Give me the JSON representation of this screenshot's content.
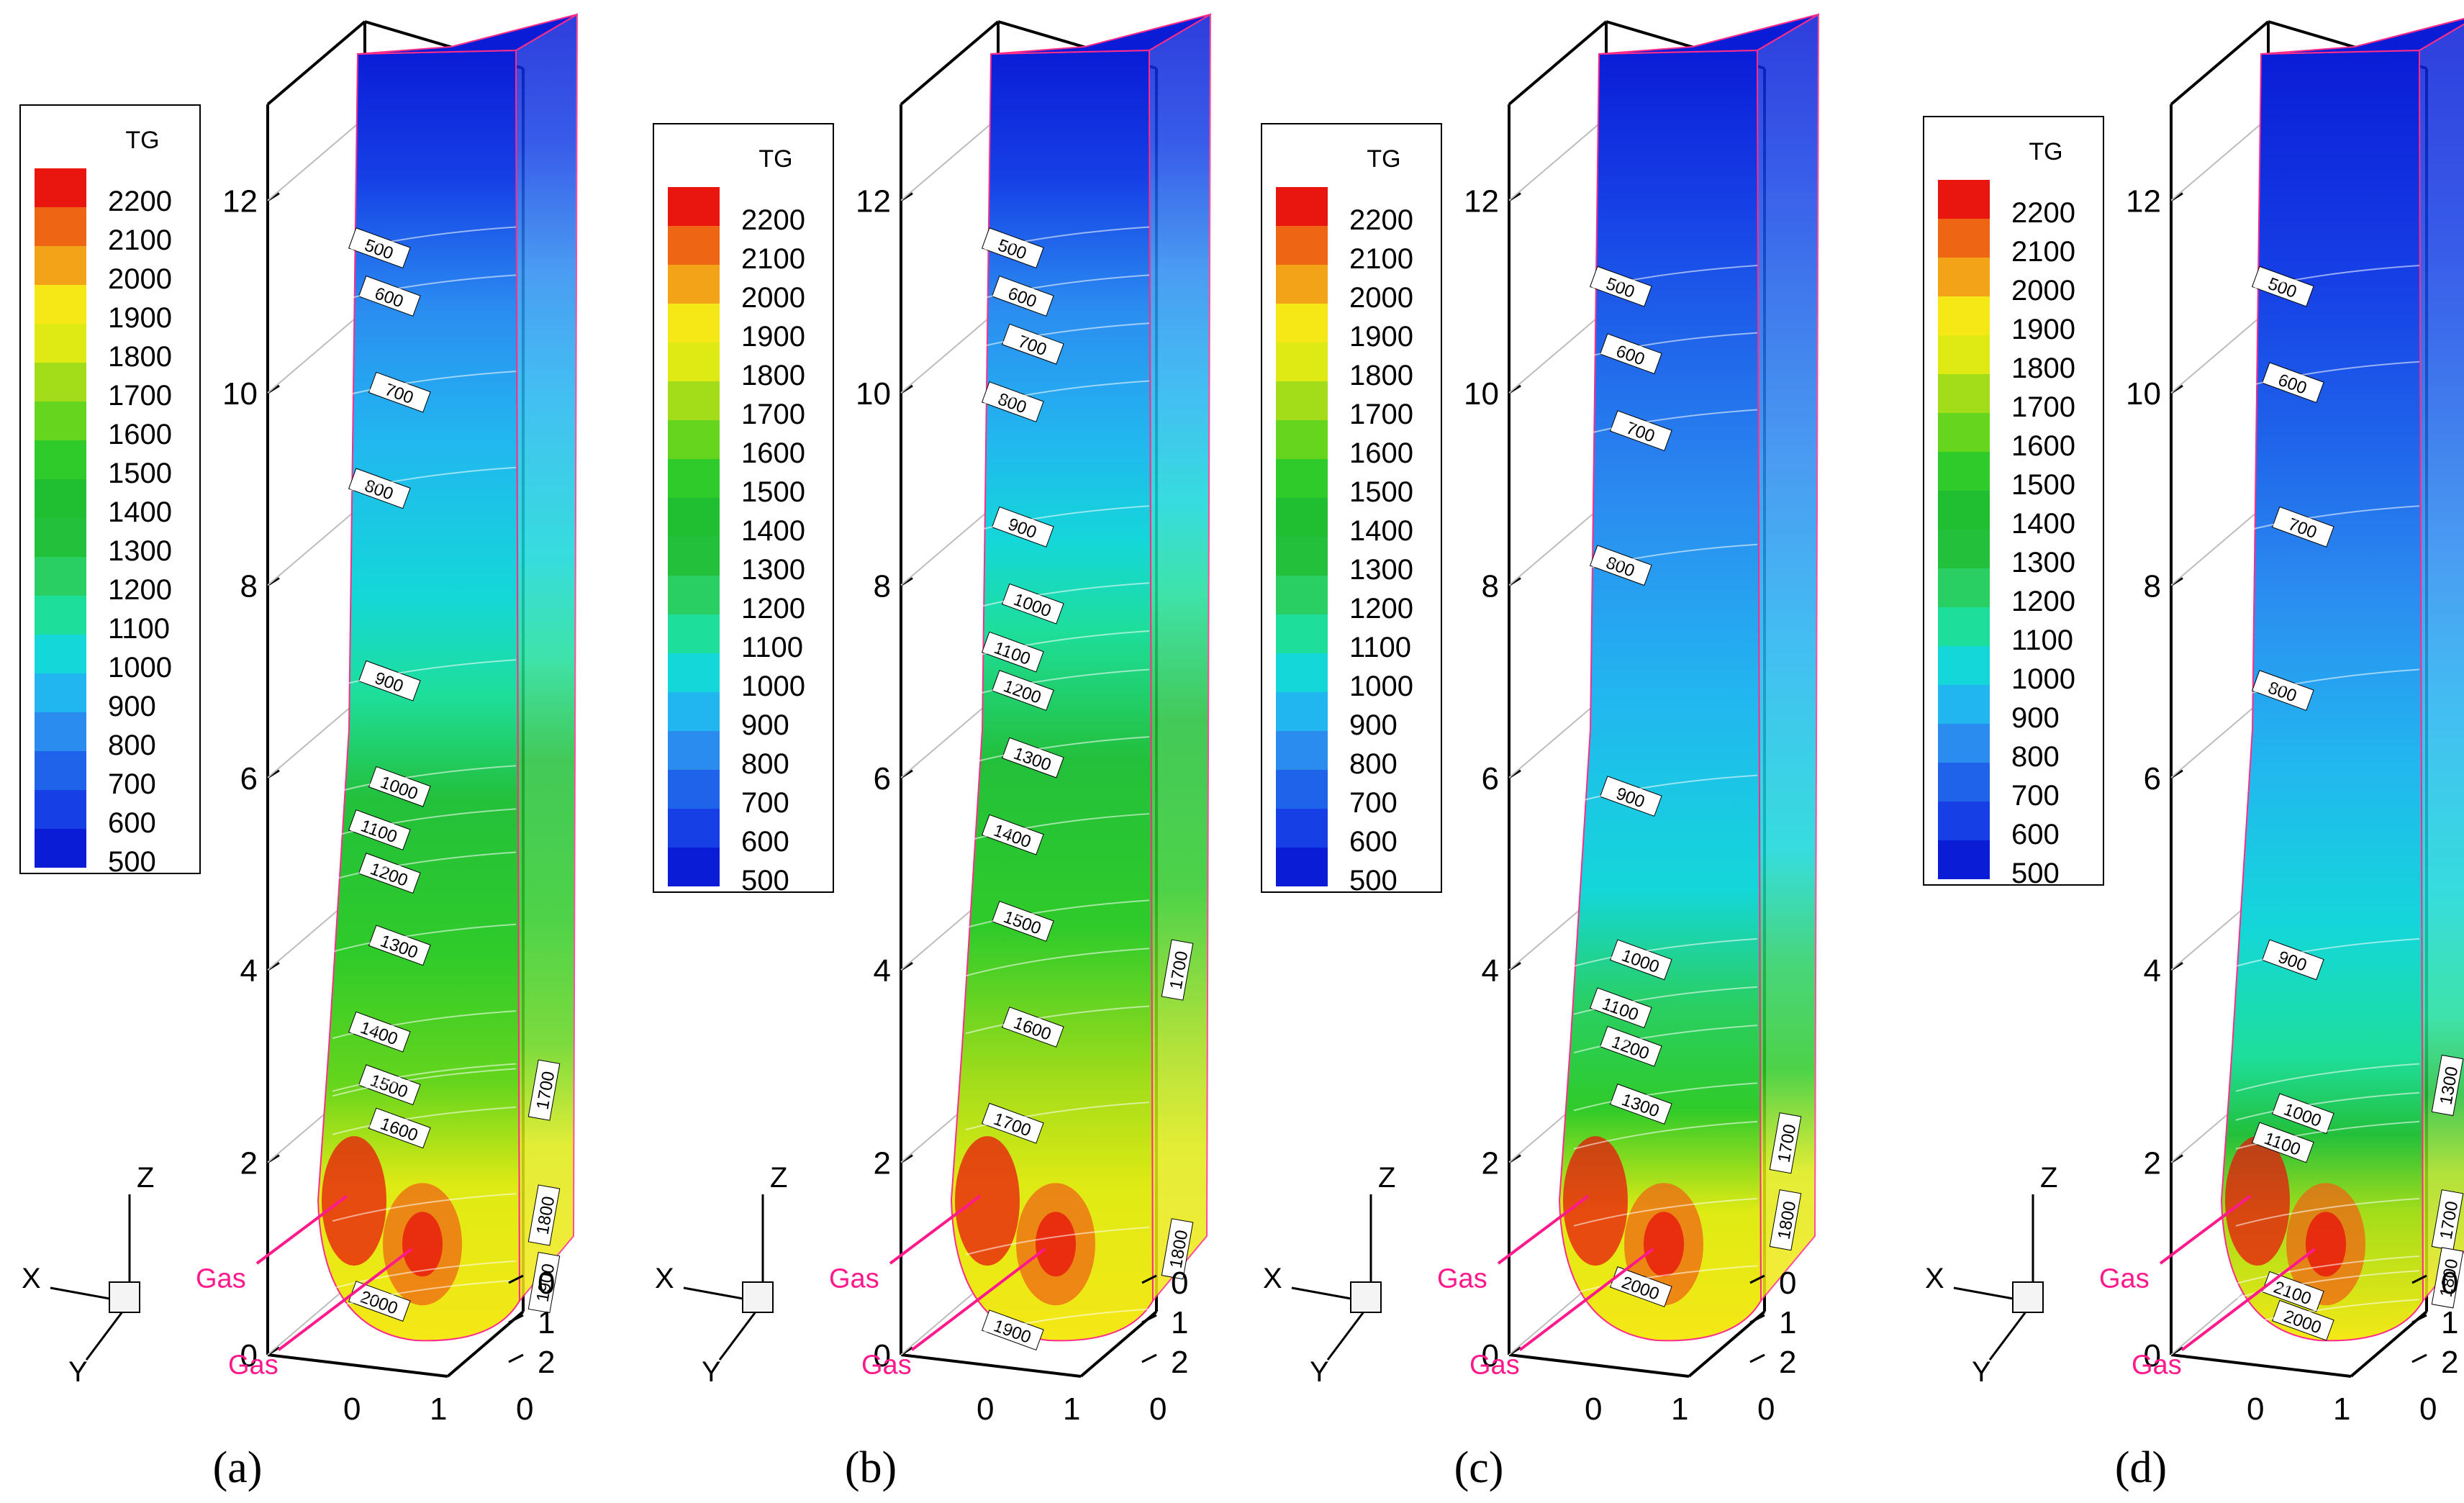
{
  "figure": {
    "legend_title": "TG",
    "legend_levels": [
      2200,
      2100,
      2000,
      1900,
      1800,
      1700,
      1600,
      1500,
      1400,
      1300,
      1200,
      1100,
      1000,
      900,
      800,
      700,
      600,
      500
    ],
    "level_colors": {
      "500": "#0a1cd6",
      "600": "#1640e6",
      "700": "#1f63ea",
      "800": "#2b8cf0",
      "900": "#22b6f0",
      "1000": "#14d7d9",
      "1100": "#1ede9b",
      "1200": "#29cf62",
      "1300": "#23c03b",
      "1400": "#1fbf31",
      "1500": "#2fcb2a",
      "1600": "#65d51d",
      "1700": "#a3dd1a",
      "1800": "#dfea14",
      "1900": "#f5e816",
      "2000": "#f2a317",
      "2100": "#ee6614",
      "2200": "#e8160e"
    },
    "axes": {
      "z_ticks": [
        "0",
        "2",
        "4",
        "6",
        "8",
        "10",
        "12"
      ],
      "x_ticks": [
        "0",
        "1",
        "2"
      ],
      "y_ticks": [
        "0",
        "1",
        "2"
      ],
      "triad": {
        "x": "X",
        "y": "Y",
        "z": "Z"
      }
    },
    "gas_label": "Gas",
    "outline_color": "#ff2d8a",
    "gas_color": "#ff1a8c"
  },
  "chart_data": [
    {
      "type": "heatmap",
      "panel": "a",
      "caption": "(a)",
      "variable": "TG",
      "zlim": [
        0,
        13
      ],
      "contour_labels": [
        {
          "value": 500,
          "z": 11.5
        },
        {
          "value": 600,
          "z": 11.0
        },
        {
          "value": 700,
          "z": 10.0
        },
        {
          "value": 800,
          "z": 9.0
        },
        {
          "value": 900,
          "z": 7.0
        },
        {
          "value": 1000,
          "z": 5.9
        },
        {
          "value": 1100,
          "z": 5.45
        },
        {
          "value": 1200,
          "z": 5.0
        },
        {
          "value": 1300,
          "z": 4.25
        },
        {
          "value": 1400,
          "z": 3.35
        },
        {
          "value": 1500,
          "z": 2.8
        },
        {
          "value": 1600,
          "z": 2.35
        },
        {
          "value": 1700,
          "z": 2.75,
          "face": "side"
        },
        {
          "value": 1800,
          "z": 1.45,
          "face": "side"
        },
        {
          "value": 1900,
          "z": 0.75,
          "face": "side"
        },
        {
          "value": 2000,
          "z": 0.55
        }
      ],
      "gas_inlets": 2
    },
    {
      "type": "heatmap",
      "panel": "b",
      "caption": "(b)",
      "variable": "TG",
      "zlim": [
        0,
        13
      ],
      "contour_labels": [
        {
          "value": 500,
          "z": 11.5
        },
        {
          "value": 600,
          "z": 11.0
        },
        {
          "value": 700,
          "z": 10.5
        },
        {
          "value": 800,
          "z": 9.9
        },
        {
          "value": 900,
          "z": 8.6
        },
        {
          "value": 1000,
          "z": 7.8
        },
        {
          "value": 1100,
          "z": 7.3
        },
        {
          "value": 1200,
          "z": 6.9
        },
        {
          "value": 1300,
          "z": 6.2
        },
        {
          "value": 1400,
          "z": 5.4
        },
        {
          "value": 1500,
          "z": 4.5
        },
        {
          "value": 1600,
          "z": 3.4
        },
        {
          "value": 1700,
          "z": 2.4
        },
        {
          "value": 1700,
          "z": 4.0,
          "face": "side"
        },
        {
          "value": 1800,
          "z": 1.1,
          "face": "side"
        },
        {
          "value": 1900,
          "z": 0.25
        }
      ],
      "gas_inlets": 2
    },
    {
      "type": "heatmap",
      "panel": "c",
      "caption": "(c)",
      "variable": "TG",
      "zlim": [
        0,
        13
      ],
      "contour_labels": [
        {
          "value": 500,
          "z": 11.1
        },
        {
          "value": 600,
          "z": 10.4
        },
        {
          "value": 700,
          "z": 9.6
        },
        {
          "value": 800,
          "z": 8.2
        },
        {
          "value": 900,
          "z": 5.8
        },
        {
          "value": 1000,
          "z": 4.1
        },
        {
          "value": 1100,
          "z": 3.6
        },
        {
          "value": 1200,
          "z": 3.2
        },
        {
          "value": 1300,
          "z": 2.6
        },
        {
          "value": 1700,
          "z": 2.2,
          "face": "side"
        },
        {
          "value": 1800,
          "z": 1.4,
          "face": "side"
        },
        {
          "value": 2000,
          "z": 0.7
        }
      ],
      "gas_inlets": 2
    },
    {
      "type": "heatmap",
      "panel": "d",
      "caption": "(d)",
      "variable": "TG",
      "zlim": [
        0,
        13
      ],
      "contour_labels": [
        {
          "value": 500,
          "z": 11.1
        },
        {
          "value": 600,
          "z": 10.1
        },
        {
          "value": 700,
          "z": 8.6
        },
        {
          "value": 800,
          "z": 6.9
        },
        {
          "value": 900,
          "z": 4.1
        },
        {
          "value": 1000,
          "z": 2.5
        },
        {
          "value": 1100,
          "z": 2.2
        },
        {
          "value": 1300,
          "z": 2.8,
          "face": "side"
        },
        {
          "value": 1700,
          "z": 1.4,
          "face": "side"
        },
        {
          "value": 1800,
          "z": 0.8,
          "face": "side"
        },
        {
          "value": 2100,
          "z": 0.65
        },
        {
          "value": 2000,
          "z": 0.35
        }
      ],
      "gas_inlets": 2
    }
  ]
}
